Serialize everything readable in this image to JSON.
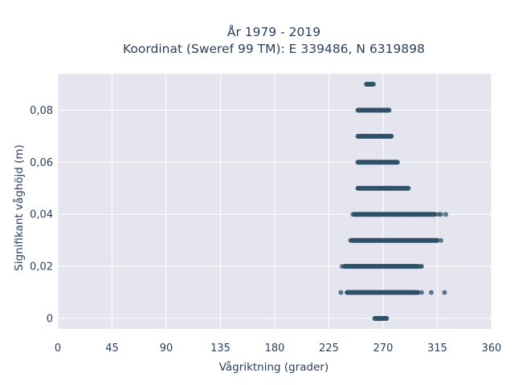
{
  "chart_data": {
    "type": "scatter",
    "title_line1": "År 1979 - 2019",
    "title_line2": "Koordinat (Sweref 99 TM): E 339486, N 6319898",
    "xlabel": "Vågriktning (grader)",
    "ylabel": "Signifikant våghöjd (m)",
    "xlim": [
      0,
      360
    ],
    "ylim": [
      -0.004,
      0.094
    ],
    "xticks": [
      {
        "value": 0,
        "label": "0"
      },
      {
        "value": 45,
        "label": "45"
      },
      {
        "value": 90,
        "label": "90"
      },
      {
        "value": 135,
        "label": "135"
      },
      {
        "value": 180,
        "label": "180"
      },
      {
        "value": 225,
        "label": "225"
      },
      {
        "value": 270,
        "label": "270"
      },
      {
        "value": 315,
        "label": "315"
      },
      {
        "value": 360,
        "label": "360"
      }
    ],
    "yticks": [
      {
        "value": 0,
        "label": "0"
      },
      {
        "value": 0.02,
        "label": "0,02"
      },
      {
        "value": 0.04,
        "label": "0,04"
      },
      {
        "value": 0.06,
        "label": "0,06"
      },
      {
        "value": 0.08,
        "label": "0,08"
      }
    ],
    "grid": true,
    "marker_color": "#2f5168",
    "plot_bg": "#e5e5f0",
    "bands": [
      {
        "y": 0.0,
        "x_from": 263,
        "x_to": 273,
        "outliers": []
      },
      {
        "y": 0.01,
        "x_from": 240,
        "x_to": 299,
        "outliers": [
          235,
          302,
          310,
          321
        ]
      },
      {
        "y": 0.02,
        "x_from": 238,
        "x_to": 299,
        "outliers": [
          236,
          301,
          302
        ]
      },
      {
        "y": 0.03,
        "x_from": 244,
        "x_to": 315,
        "outliers": [
          243,
          318
        ]
      },
      {
        "y": 0.04,
        "x_from": 246,
        "x_to": 313,
        "outliers": [
          245,
          316,
          318,
          322
        ]
      },
      {
        "y": 0.05,
        "x_from": 249,
        "x_to": 291,
        "outliers": []
      },
      {
        "y": 0.06,
        "x_from": 249,
        "x_to": 282,
        "outliers": []
      },
      {
        "y": 0.07,
        "x_from": 249,
        "x_to": 277,
        "outliers": []
      },
      {
        "y": 0.08,
        "x_from": 249,
        "x_to": 275,
        "outliers": []
      },
      {
        "y": 0.09,
        "x_from": 256,
        "x_to": 262,
        "outliers": []
      }
    ]
  }
}
